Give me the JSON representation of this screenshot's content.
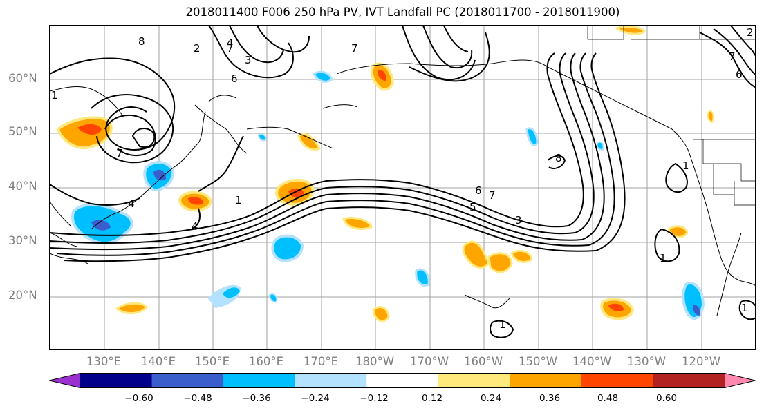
{
  "title": "2018011400 F006 250 hPa PV, IVT Landfall PC (2018011700 - 2018011900)",
  "lat_labels": [
    "60°N",
    "50°N",
    "40°N",
    "30°N",
    "20°N"
  ],
  "lon_labels": [
    "130°E",
    "140°E",
    "150°E",
    "160°E",
    "170°E",
    "180°W",
    "170°W",
    "160°W",
    "150°W",
    "140°W",
    "130°W",
    "120°W"
  ],
  "colorbar": {
    "ticks": [
      "−0.60",
      "−0.48",
      "−0.36",
      "−0.24",
      "−0.12",
      "0.12",
      "0.24",
      "0.36",
      "0.48",
      "0.60"
    ],
    "colors": [
      "#9b30d0",
      "#00008b",
      "#3a5fcd",
      "#00bfff",
      "#b2e2ff",
      "#ffffff",
      "#ffe87c",
      "#ffa500",
      "#ff4500",
      "#b22222",
      "#ff88b0"
    ]
  },
  "contour_labels": [
    "8",
    "7",
    "4",
    "3",
    "6",
    "2",
    "7",
    "1",
    "4",
    "7",
    "4",
    "1",
    "6",
    "5",
    "7",
    "3",
    "8",
    "1",
    "1",
    "1",
    "1",
    "2",
    "6",
    "7"
  ],
  "colors": {
    "title": "#000000",
    "tick_label": "#7f7f7f",
    "grid": "#a0a0a0",
    "contour": "#000000"
  }
}
